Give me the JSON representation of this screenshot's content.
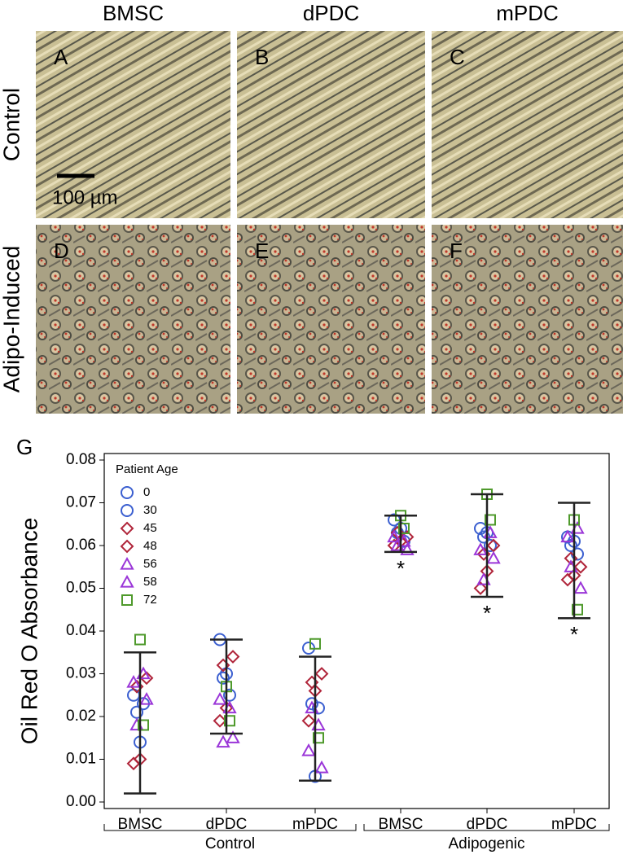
{
  "figure": {
    "columns": [
      "BMSC",
      "dPDC",
      "mPDC"
    ],
    "rows": [
      "Control",
      "Adipo-Induced"
    ],
    "panels": [
      "A",
      "B",
      "C",
      "D",
      "E",
      "F"
    ],
    "scale_bar": "100 µm"
  },
  "chart_data": {
    "type": "strip",
    "panel_label": "G",
    "y_label": "Oil Red O Absorbance",
    "categories": [
      "BMSC",
      "dPDC",
      "mPDC",
      "BMSC",
      "dPDC",
      "mPDC"
    ],
    "groups": [
      "Control",
      "Adipogenic"
    ],
    "legend_title": "Patient Age",
    "ylim": [
      0,
      0.08
    ],
    "yticks": [
      {
        "value": 0,
        "label": "0.00"
      },
      0.01,
      0.02,
      0.03,
      0.04,
      0.05,
      0.06,
      0.07,
      0.08
    ],
    "series": [
      {
        "name": "0",
        "color": "#3b5fd0",
        "marker": "circle",
        "values": [
          [
            0.025,
            0.021
          ],
          [
            0.038,
            0.029
          ],
          [
            0.036,
            0.023
          ],
          [
            0.066,
            0.063
          ],
          [
            0.064,
            0.062
          ],
          [
            0.062,
            0.06
          ]
        ]
      },
      {
        "name": "30",
        "color": "#3b5fd0",
        "marker": "circle",
        "values": [
          [
            0.014,
            0.023
          ],
          [
            0.03,
            0.025
          ],
          [
            0.006,
            0.022
          ],
          [
            0.064,
            0.061
          ],
          [
            0.063,
            0.06
          ],
          [
            0.061,
            0.058
          ]
        ]
      },
      {
        "name": "45",
        "color": "#b0253a",
        "marker": "diamond",
        "values": [
          [
            0.029,
            0.009
          ],
          [
            0.034,
            0.019
          ],
          [
            0.03,
            0.019
          ],
          [
            0.062,
            0.06
          ],
          [
            0.06,
            0.05
          ],
          [
            0.055,
            0.052
          ]
        ]
      },
      {
        "name": "48",
        "color": "#b0253a",
        "marker": "diamond",
        "values": [
          [
            0.027,
            0.01
          ],
          [
            0.032,
            0.022
          ],
          [
            0.028,
            0.026
          ],
          [
            0.063,
            0.061
          ],
          [
            0.058,
            0.054
          ],
          [
            0.057,
            0.053
          ]
        ]
      },
      {
        "name": "56",
        "color": "#9a35d8",
        "marker": "triangle",
        "values": [
          [
            0.03,
            0.024
          ],
          [
            0.022,
            0.015
          ],
          [
            0.018,
            0.008
          ],
          [
            0.061,
            0.059
          ],
          [
            0.063,
            0.057
          ],
          [
            0.064,
            0.05
          ]
        ]
      },
      {
        "name": "58",
        "color": "#9a35d8",
        "marker": "triangle",
        "values": [
          [
            0.028,
            0.018
          ],
          [
            0.024,
            0.014
          ],
          [
            0.012,
            0.022
          ],
          [
            0.062,
            0.06
          ],
          [
            0.059,
            0.052
          ],
          [
            0.062,
            0.055
          ]
        ]
      },
      {
        "name": "72",
        "color": "#4f9a2c",
        "marker": "square",
        "values": [
          [
            0.038,
            0.018
          ],
          [
            0.027,
            0.019
          ],
          [
            0.037,
            0.015
          ],
          [
            0.067,
            0.064
          ],
          [
            0.072,
            0.066
          ],
          [
            0.066,
            0.045
          ]
        ]
      }
    ],
    "error_bars": [
      [
        0.002,
        0.035
      ],
      [
        0.016,
        0.038
      ],
      [
        0.005,
        0.034
      ],
      [
        0.0585,
        0.067
      ],
      [
        0.048,
        0.072
      ],
      [
        0.043,
        0.07
      ]
    ],
    "annotations": [
      "*",
      "*",
      "*"
    ]
  }
}
